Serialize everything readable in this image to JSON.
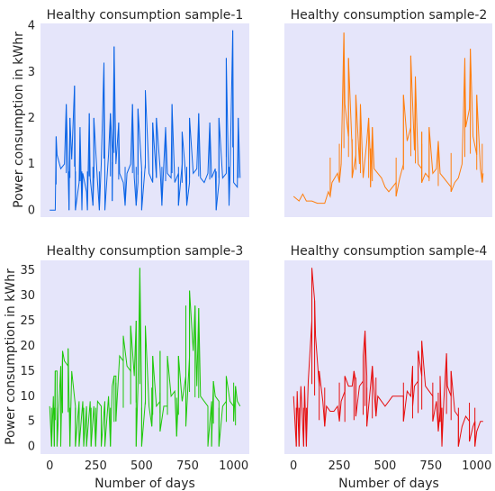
{
  "figure": {
    "shared_ylabel_top": "Power consumption in kWhr",
    "shared_ylabel_bottom": "Power consumption in kWhr",
    "shared_xlabel": "Number of days",
    "background": "#e5e5fa"
  },
  "chart_data": [
    {
      "type": "line",
      "title": "Healthy consumption sample-1",
      "xlabel": "",
      "ylabel": "Power consumption in kWhr",
      "xlim": [
        -50,
        1085
      ],
      "ylim": [
        -0.15,
        4.05
      ],
      "yticks": [
        0,
        1,
        2,
        3,
        4
      ],
      "xticks": [],
      "grid": false,
      "series": [
        {
          "color": "#0a64e6",
          "line_x": [
            0,
            30,
            40,
            60,
            80,
            100,
            120,
            140,
            160,
            180,
            200,
            220,
            240,
            260,
            280,
            300,
            320,
            340,
            360,
            380,
            400,
            420,
            440,
            460,
            480,
            500,
            520,
            540,
            560,
            580,
            600,
            620,
            640,
            660,
            680,
            700,
            720,
            740,
            760,
            780,
            800,
            820,
            840,
            860,
            880,
            900,
            920,
            940,
            960,
            980,
            1000,
            1020,
            1035
          ],
          "line_y": [
            0,
            0,
            1.2,
            0.9,
            1.0,
            0.8,
            1.1,
            0.3,
            0.6,
            0.8,
            0.4,
            0.7,
            0.8,
            0.6,
            1.0,
            0.9,
            1.2,
            1.3,
            1.0,
            0.8,
            0.6,
            0.8,
            1.0,
            0.7,
            0.6,
            0.9,
            1.0,
            0.8,
            0.6,
            0.7,
            0.9,
            1.0,
            0.8,
            0.7,
            0.6,
            0.8,
            1.0,
            0.7,
            0.6,
            0.8,
            0.9,
            0.7,
            0.6,
            0.8,
            0.7,
            0.9,
            0.6,
            0.7,
            0.8,
            0.7,
            0.6,
            0.5,
            0.7
          ],
          "spikes": [
            [
              35,
              1.6
            ],
            [
              90,
              2.3
            ],
            [
              110,
              2.0
            ],
            [
              135,
              2.7
            ],
            [
              165,
              1.8
            ],
            [
              215,
              2.1
            ],
            [
              240,
              2.0
            ],
            [
              295,
              3.2
            ],
            [
              330,
              2.1
            ],
            [
              350,
              3.55
            ],
            [
              375,
              1.9
            ],
            [
              450,
              2.3
            ],
            [
              480,
              2.2
            ],
            [
              520,
              2.6
            ],
            [
              560,
              1.9
            ],
            [
              580,
              2.0
            ],
            [
              630,
              1.8
            ],
            [
              665,
              2.3
            ],
            [
              720,
              1.7
            ],
            [
              760,
              2.0
            ],
            [
              810,
              2.1
            ],
            [
              870,
              1.9
            ],
            [
              920,
              2.0
            ],
            [
              960,
              3.3
            ],
            [
              995,
              3.9
            ],
            [
              1025,
              2.0
            ]
          ],
          "dips": [
            [
              105,
              0
            ],
            [
              140,
              0
            ],
            [
              175,
              0
            ],
            [
              205,
              0
            ],
            [
              235,
              0.1
            ],
            [
              270,
              0
            ],
            [
              300,
              0
            ],
            [
              340,
              0.2
            ],
            [
              410,
              0.1
            ],
            [
              470,
              0.1
            ],
            [
              500,
              0
            ],
            [
              610,
              0.1
            ],
            [
              700,
              0.1
            ],
            [
              745,
              0.1
            ],
            [
              905,
              0
            ],
            [
              975,
              0.1
            ]
          ]
        }
      ]
    },
    {
      "type": "line",
      "title": "Healthy consumption sample-2",
      "xlabel": "",
      "ylabel": "",
      "xlim": [
        -50,
        1085
      ],
      "ylim": [
        -0.15,
        4.05
      ],
      "yticks": [],
      "xticks": [],
      "grid": false,
      "series": [
        {
          "color": "#ff7f0e",
          "line_x": [
            0,
            30,
            50,
            70,
            100,
            130,
            150,
            170,
            190,
            210,
            240,
            260,
            280,
            300,
            320,
            340,
            360,
            380,
            400,
            420,
            440,
            460,
            480,
            500,
            520,
            540,
            560,
            580,
            600,
            620,
            640,
            660,
            680,
            700,
            720,
            740,
            760,
            780,
            800,
            820,
            840,
            860,
            880,
            900,
            920,
            940,
            960,
            980,
            1000,
            1020,
            1035
          ],
          "line_y": [
            0.3,
            0.2,
            0.35,
            0.2,
            0.2,
            0.15,
            0.15,
            0.15,
            0.4,
            0.6,
            0.8,
            1.0,
            2.3,
            1.6,
            1.3,
            1.2,
            1.0,
            0.7,
            1.5,
            1.0,
            0.9,
            0.8,
            0.7,
            0.5,
            0.4,
            0.5,
            0.6,
            0.7,
            1.0,
            1.5,
            1.8,
            1.3,
            1.0,
            0.9,
            0.8,
            0.7,
            0.8,
            0.9,
            0.8,
            0.7,
            0.6,
            0.5,
            0.6,
            0.7,
            1.0,
            1.8,
            2.2,
            1.6,
            1.2,
            0.9,
            0.8
          ],
          "spikes": [
            [
              275,
              3.85
            ],
            [
              300,
              3.3
            ],
            [
              340,
              2.5
            ],
            [
              365,
              2.3
            ],
            [
              410,
              2.0
            ],
            [
              430,
              1.8
            ],
            [
              600,
              2.5
            ],
            [
              640,
              3.35
            ],
            [
              665,
              2.9
            ],
            [
              700,
              1.7
            ],
            [
              740,
              1.8
            ],
            [
              790,
              1.5
            ],
            [
              935,
              3.3
            ],
            [
              965,
              3.5
            ],
            [
              1000,
              2.5
            ]
          ],
          "dips": [
            [
              200,
              0.3
            ],
            [
              250,
              0.6
            ],
            [
              320,
              0.7
            ],
            [
              420,
              0.5
            ],
            [
              560,
              0.3
            ],
            [
              700,
              0.6
            ],
            [
              860,
              0.4
            ],
            [
              1030,
              0.6
            ]
          ]
        }
      ]
    },
    {
      "type": "line",
      "title": "Healthy consumption sample-3",
      "xlabel": "Number of days",
      "ylabel": "Power consumption in kWhr",
      "xlim": [
        -50,
        1085
      ],
      "ylim": [
        -1.5,
        37
      ],
      "yticks": [
        0,
        5,
        10,
        15,
        20,
        25,
        30,
        35
      ],
      "xticks": [
        0,
        250,
        500,
        750,
        1000
      ],
      "grid": false,
      "series": [
        {
          "color": "#1fc80a",
          "line_x": [
            0,
            20,
            40,
            60,
            80,
            100,
            120,
            140,
            160,
            180,
            200,
            220,
            240,
            260,
            280,
            300,
            320,
            340,
            360,
            380,
            400,
            420,
            440,
            460,
            480,
            500,
            520,
            540,
            560,
            580,
            600,
            620,
            640,
            660,
            680,
            700,
            720,
            740,
            760,
            780,
            800,
            820,
            840,
            860,
            880,
            900,
            920,
            940,
            960,
            980,
            1000,
            1020,
            1035
          ],
          "line_y": [
            8,
            10,
            15,
            16,
            17,
            16,
            15,
            8,
            9,
            9,
            8,
            9,
            8,
            9,
            8,
            9,
            10,
            12,
            14,
            18,
            17,
            16,
            15,
            14,
            12,
            10,
            9,
            8,
            8,
            8,
            9,
            8,
            8,
            10,
            11,
            10,
            9,
            14,
            18,
            19,
            12,
            10,
            9,
            8,
            9,
            10,
            9,
            8,
            9,
            9,
            8,
            9,
            8
          ],
          "spikes": [
            [
              30,
              15
            ],
            [
              70,
              19
            ],
            [
              100,
              19.5
            ],
            [
              350,
              14
            ],
            [
              400,
              22
            ],
            [
              440,
              24
            ],
            [
              470,
              25
            ],
            [
              490,
              35.5
            ],
            [
              520,
              24
            ],
            [
              560,
              18
            ],
            [
              600,
              19
            ],
            [
              640,
              18
            ],
            [
              700,
              18
            ],
            [
              740,
              28
            ],
            [
              760,
              31
            ],
            [
              790,
              28
            ],
            [
              810,
              27.5
            ],
            [
              890,
              13
            ],
            [
              960,
              14
            ],
            [
              1010,
              12
            ]
          ],
          "dips": [
            [
              10,
              0
            ],
            [
              25,
              0
            ],
            [
              40,
              0
            ],
            [
              60,
              0
            ],
            [
              110,
              0
            ],
            [
              140,
              0
            ],
            [
              160,
              0
            ],
            [
              185,
              0
            ],
            [
              200,
              0
            ],
            [
              225,
              0
            ],
            [
              250,
              0
            ],
            [
              280,
              0
            ],
            [
              300,
              0
            ],
            [
              330,
              0
            ],
            [
              360,
              5
            ],
            [
              470,
              0
            ],
            [
              500,
              0
            ],
            [
              555,
              4
            ],
            [
              600,
              3
            ],
            [
              690,
              2
            ],
            [
              740,
              4
            ],
            [
              860,
              0
            ],
            [
              880,
              0
            ],
            [
              920,
              0
            ],
            [
              1000,
              5
            ]
          ]
        }
      ]
    },
    {
      "type": "line",
      "title": "Healthy consumption sample-4",
      "xlabel": "Number of days",
      "ylabel": "",
      "xlim": [
        -50,
        1085
      ],
      "ylim": [
        -1.5,
        37
      ],
      "yticks": [],
      "xticks": [
        0,
        250,
        500,
        750,
        1000
      ],
      "grid": false,
      "series": [
        {
          "color": "#e60f0f",
          "line_x": [
            0,
            20,
            40,
            60,
            80,
            100,
            120,
            140,
            160,
            180,
            200,
            220,
            240,
            260,
            280,
            300,
            320,
            340,
            360,
            380,
            400,
            420,
            440,
            460,
            480,
            500,
            520,
            540,
            560,
            580,
            600,
            620,
            640,
            660,
            680,
            700,
            720,
            740,
            760,
            780,
            800,
            820,
            840,
            860,
            880,
            900,
            920,
            940,
            960,
            980,
            1000,
            1020,
            1035
          ],
          "line_y": [
            10,
            11,
            12,
            12,
            13,
            25,
            22,
            12,
            9,
            8,
            7,
            7,
            8,
            9,
            11,
            12,
            12,
            13,
            12,
            13,
            14,
            12,
            11,
            10,
            9,
            8,
            9,
            10,
            10,
            10,
            10,
            11,
            10,
            12,
            13,
            14,
            12,
            11,
            10,
            9,
            7,
            9,
            12,
            10,
            7,
            6,
            4,
            6,
            5,
            4,
            3,
            5,
            5
          ],
          "spikes": [
            [
              100,
              35.5
            ],
            [
              115,
              29
            ],
            [
              140,
              15
            ],
            [
              280,
              14
            ],
            [
              330,
              15
            ],
            [
              380,
              18
            ],
            [
              390,
              23
            ],
            [
              430,
              16
            ],
            [
              650,
              16
            ],
            [
              680,
              19
            ],
            [
              700,
              21
            ],
            [
              800,
              14
            ],
            [
              835,
              18.5
            ],
            [
              860,
              15
            ],
            [
              990,
              5
            ]
          ],
          "dips": [
            [
              15,
              0
            ],
            [
              30,
              0
            ],
            [
              55,
              0
            ],
            [
              70,
              0
            ],
            [
              170,
              4
            ],
            [
              250,
              5
            ],
            [
              340,
              6
            ],
            [
              400,
              4
            ],
            [
              450,
              6
            ],
            [
              600,
              5
            ],
            [
              650,
              8
            ],
            [
              760,
              5
            ],
            [
              790,
              3
            ],
            [
              810,
              0
            ],
            [
              900,
              0
            ],
            [
              960,
              1
            ],
            [
              990,
              0
            ]
          ]
        }
      ]
    }
  ]
}
